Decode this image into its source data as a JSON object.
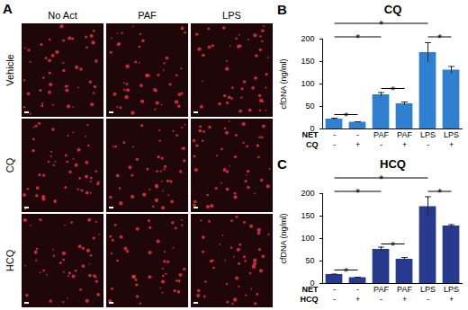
{
  "image_panel": {
    "panel_label": "A",
    "columns": [
      "No Act",
      "PAF",
      "LPS"
    ],
    "rows": [
      "Vehicle",
      "CQ",
      "HCQ"
    ]
  },
  "chart_data": [
    {
      "type": "bar",
      "panel_label": "B",
      "title": "CQ",
      "y_label": "cfDNA (ng/ml)",
      "x_label_rows": [
        {
          "name": "NET",
          "labels": [
            "-",
            "-",
            "PAF",
            "PAF",
            "LPS",
            "LPS"
          ]
        },
        {
          "name": "CQ",
          "labels": [
            "-",
            "+",
            "-",
            "+",
            "-",
            "+"
          ]
        }
      ],
      "values": [
        22,
        15,
        76,
        56,
        170,
        131
      ],
      "errors": [
        2,
        1,
        5,
        4,
        22,
        8
      ],
      "color": "#2f80d1",
      "ylim": [
        0,
        200
      ],
      "yticks": [
        0,
        50,
        100,
        150,
        200
      ],
      "annotations": [
        {
          "from": 0,
          "to": 1,
          "y": 32,
          "text": "*"
        },
        {
          "from": 0,
          "to": 2,
          "y": 205,
          "text": "*"
        },
        {
          "from": 0,
          "to": 4,
          "y": 235,
          "text": "*"
        },
        {
          "from": 2,
          "to": 3,
          "y": 90,
          "text": "*"
        },
        {
          "from": 4,
          "to": 5,
          "y": 205,
          "text": "*"
        }
      ]
    },
    {
      "type": "bar",
      "panel_label": "C",
      "title": "HCQ",
      "y_label": "cfDNA (ng/ml)",
      "x_label_rows": [
        {
          "name": "NET",
          "labels": [
            "-",
            "-",
            "PAF",
            "PAF",
            "LPS",
            "LPS"
          ]
        },
        {
          "name": "HCQ",
          "labels": [
            "-",
            "+",
            "-",
            "+",
            "-",
            "+"
          ]
        }
      ],
      "values": [
        20,
        13,
        76,
        54,
        171,
        128
      ],
      "errors": [
        1,
        1,
        5,
        4,
        22,
        3
      ],
      "color": "#283a8e",
      "ylim": [
        0,
        200
      ],
      "yticks": [
        0,
        50,
        100,
        150,
        200
      ],
      "annotations": [
        {
          "from": 0,
          "to": 1,
          "y": 30,
          "text": "*"
        },
        {
          "from": 0,
          "to": 2,
          "y": 205,
          "text": "*"
        },
        {
          "from": 0,
          "to": 4,
          "y": 235,
          "text": "*"
        },
        {
          "from": 2,
          "to": 3,
          "y": 88,
          "text": "*"
        },
        {
          "from": 4,
          "to": 5,
          "y": 205,
          "text": "*"
        }
      ]
    }
  ]
}
